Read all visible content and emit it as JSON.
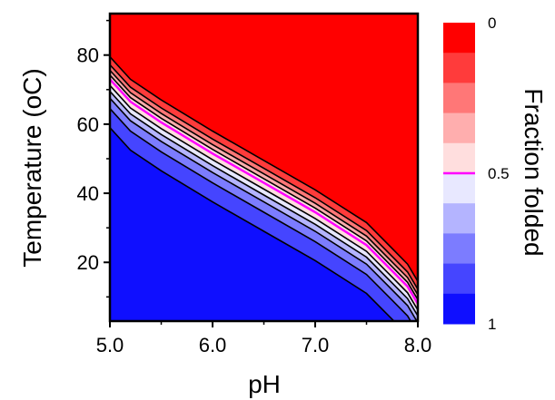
{
  "chart_data": {
    "type": "heatmap",
    "xlabel": "pH",
    "ylabel": "Temperature (oC)",
    "colorbar_title": "Fraction folded",
    "xlim": [
      5.0,
      8.0
    ],
    "ylim": [
      3,
      92
    ],
    "x_ticks": [
      {
        "value": 5.0,
        "label": "5.0"
      },
      {
        "value": 6.0,
        "label": "6.0"
      },
      {
        "value": 7.0,
        "label": "7.0"
      },
      {
        "value": 8.0,
        "label": "8.0"
      }
    ],
    "y_ticks": [
      {
        "value": 20,
        "label": "20"
      },
      {
        "value": 40,
        "label": "40"
      },
      {
        "value": 60,
        "label": "60"
      },
      {
        "value": 80,
        "label": "80"
      }
    ],
    "colorbar_ticks": [
      {
        "value": 0,
        "label": "0"
      },
      {
        "value": 0.5,
        "label": "0.5"
      },
      {
        "value": 1,
        "label": "1"
      }
    ],
    "colorbar_levels": [
      0,
      0.1,
      0.2,
      0.3,
      0.4,
      0.5,
      0.6,
      0.7,
      0.8,
      0.9,
      1.0
    ],
    "level_colors": [
      "#ff0000",
      "#ff3b3b",
      "#ff7777",
      "#ffaeae",
      "#ffdede",
      "#e8e8ff",
      "#b4b4ff",
      "#7c7cff",
      "#4545ff",
      "#0f0fff"
    ],
    "midpoint_color": "#ff00ff",
    "contour_color": "#000000",
    "midpoint_line": [
      {
        "ph": 5.0,
        "temp": 73
      },
      {
        "ph": 5.2,
        "temp": 66.5
      },
      {
        "ph": 5.5,
        "temp": 60.5
      },
      {
        "ph": 6.0,
        "temp": 51.5
      },
      {
        "ph": 6.5,
        "temp": 43
      },
      {
        "ph": 7.0,
        "temp": 34.5
      },
      {
        "ph": 7.5,
        "temp": 25
      },
      {
        "ph": 7.75,
        "temp": 17.5
      },
      {
        "ph": 7.9,
        "temp": 13
      },
      {
        "ph": 8.0,
        "temp": 8
      }
    ],
    "contour_offsets": [
      -14,
      -8.5,
      -5.5,
      -3.5,
      -1.8,
      1.2,
      2.6,
      4.2,
      6.5
    ]
  }
}
